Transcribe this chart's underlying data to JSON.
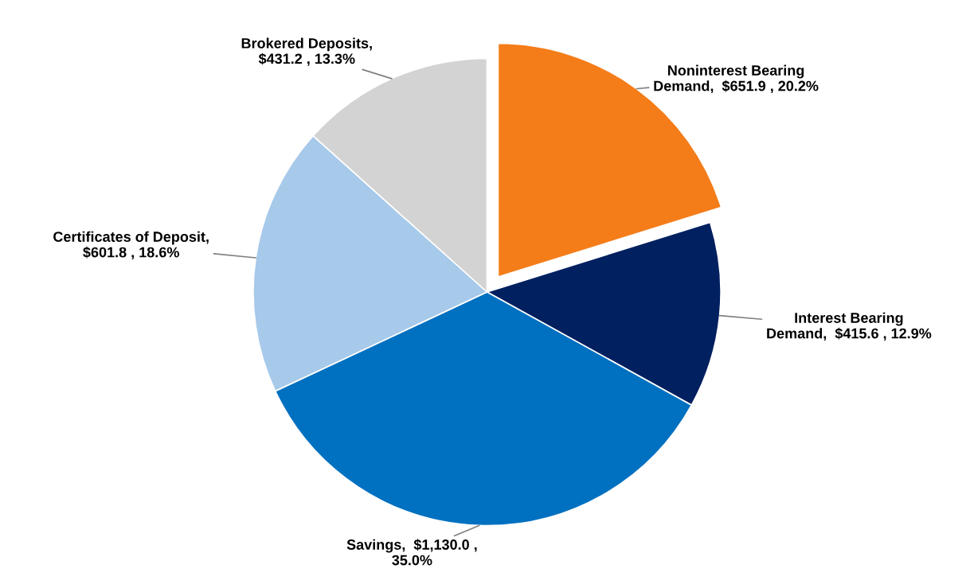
{
  "chart_data": {
    "type": "pie",
    "categories": [
      "Noninterest Bearing\nDemand",
      "Interest Bearing\nDemand",
      "Savings",
      "Certificates of Deposit",
      "Brokered Deposits"
    ],
    "values": [
      651.9,
      415.6,
      1130.0,
      601.8,
      431.2
    ],
    "colors": [
      "#f47d19",
      "#002060",
      "#0070c0",
      "#a7c9ea",
      "#d3d3d3"
    ],
    "value_labels": [
      ",  $651.9 , 20.2%",
      ",  $415.6 , 12.9%",
      ",  $1,130.0 ,\n35.0%",
      ",\n$601.8 , 18.6%",
      ",\n$431.2 , 13.3%"
    ],
    "legend": false
  }
}
